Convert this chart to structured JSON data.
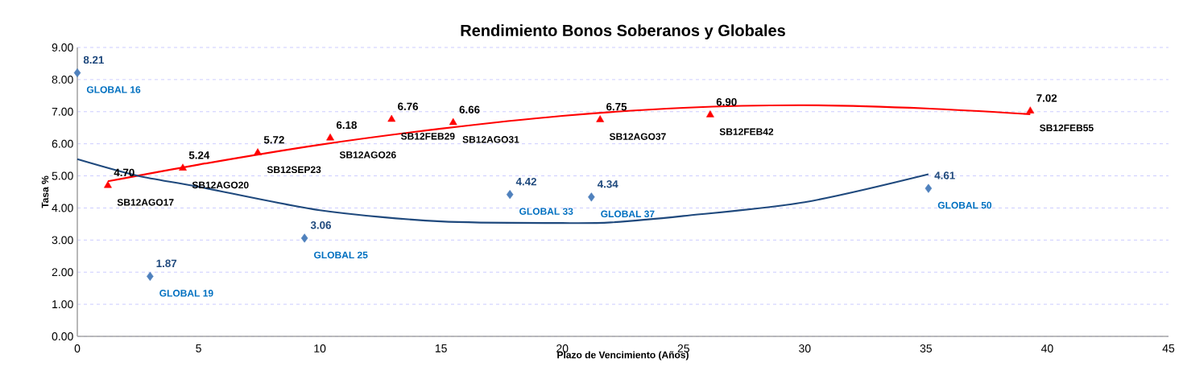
{
  "chart_data": {
    "type": "scatter",
    "title": "Rendimiento Bonos Soberanos  y Globales",
    "xlabel": "Plazo de Vencimiento  (Años)",
    "ylabel": "Tasa %",
    "xlim": [
      0,
      45
    ],
    "xticks": [
      0,
      5,
      10,
      15,
      20,
      25,
      30,
      35,
      40,
      45
    ],
    "ylim": [
      0,
      9
    ],
    "yticks": [
      {
        "value": 0,
        "label": "0.00"
      },
      {
        "value": 1,
        "label": "1.00"
      },
      {
        "value": 2,
        "label": "2.00"
      },
      {
        "value": 3,
        "label": "3.00"
      },
      {
        "value": 4,
        "label": "4.00"
      },
      {
        "value": 5,
        "label": "5.00"
      },
      {
        "value": 6,
        "label": "6.00"
      },
      {
        "value": 7,
        "label": "7.00"
      },
      {
        "value": 8,
        "label": "8.00"
      },
      {
        "value": 9,
        "label": "9.00"
      }
    ],
    "grid": "y",
    "series": [
      {
        "color": "#ff0000",
        "marker": "triangle",
        "x": [
          1.26,
          4.35,
          7.44,
          10.43,
          12.96,
          15.5,
          21.56,
          26.1,
          39.3
        ],
        "values": [
          4.7,
          5.24,
          5.72,
          6.18,
          6.76,
          6.66,
          6.75,
          6.9,
          7.02
        ],
        "value_labels": [
          "4.70",
          "5.24",
          "5.72",
          "6.18",
          "6.76",
          "6.66",
          "6.75",
          "6.90",
          "7.02"
        ]
      },
      {
        "color": "#4f81bd",
        "marker": "diamond",
        "x": [
          0,
          3.0,
          9.37,
          17.84,
          21.2,
          35.1
        ],
        "values": [
          8.21,
          1.87,
          3.06,
          4.42,
          4.34,
          4.61
        ],
        "value_labels": [
          "8.21",
          "1.87",
          "3.06",
          "4.42",
          "4.34",
          "4.61"
        ]
      },
      {
        "type": "line",
        "color": "#ff0000",
        "marker": "none",
        "x": [
          1.26,
          5,
          10,
          15,
          20,
          25,
          30,
          35,
          39.3
        ],
        "values": [
          4.83,
          5.35,
          5.97,
          6.47,
          6.87,
          7.12,
          7.2,
          7.1,
          6.92
        ]
      },
      {
        "type": "line",
        "color": "#1f497d",
        "marker": "none",
        "x": [
          0,
          2.5,
          5,
          10,
          15,
          20,
          22,
          25,
          30,
          35.1
        ],
        "values": [
          5.52,
          5.0,
          4.66,
          3.93,
          3.58,
          3.53,
          3.55,
          3.75,
          4.18,
          5.05
        ]
      }
    ],
    "annotations": [
      {
        "text": "SB12AGO17",
        "x": 1.26,
        "y": 4.7
      },
      {
        "text": "SB12AGO20",
        "x": 4.35,
        "y": 5.24
      },
      {
        "text": "SB12SEP23",
        "x": 7.44,
        "y": 5.72
      },
      {
        "text": "SB12AGO26",
        "x": 10.43,
        "y": 6.18
      },
      {
        "text": "SB12FEB29",
        "x": 12.96,
        "y": 6.76
      },
      {
        "text": "SB12AGO31",
        "x": 15.5,
        "y": 6.66
      },
      {
        "text": "SB12AGO37",
        "x": 21.56,
        "y": 6.75
      },
      {
        "text": "SB12FEB42",
        "x": 26.1,
        "y": 6.9
      },
      {
        "text": "SB12FEB55",
        "x": 39.3,
        "y": 7.02
      },
      {
        "text": "GLOBAL 16",
        "x": 0,
        "y": 8.21
      },
      {
        "text": "GLOBAL 19",
        "x": 3.0,
        "y": 1.87
      },
      {
        "text": "GLOBAL 25",
        "x": 9.37,
        "y": 3.06
      },
      {
        "text": "GLOBAL 33",
        "x": 17.84,
        "y": 4.42
      },
      {
        "text": "GLOBAL 37",
        "x": 21.2,
        "y": 4.34
      },
      {
        "text": "GLOBAL 50",
        "x": 35.1,
        "y": 4.61
      }
    ]
  }
}
